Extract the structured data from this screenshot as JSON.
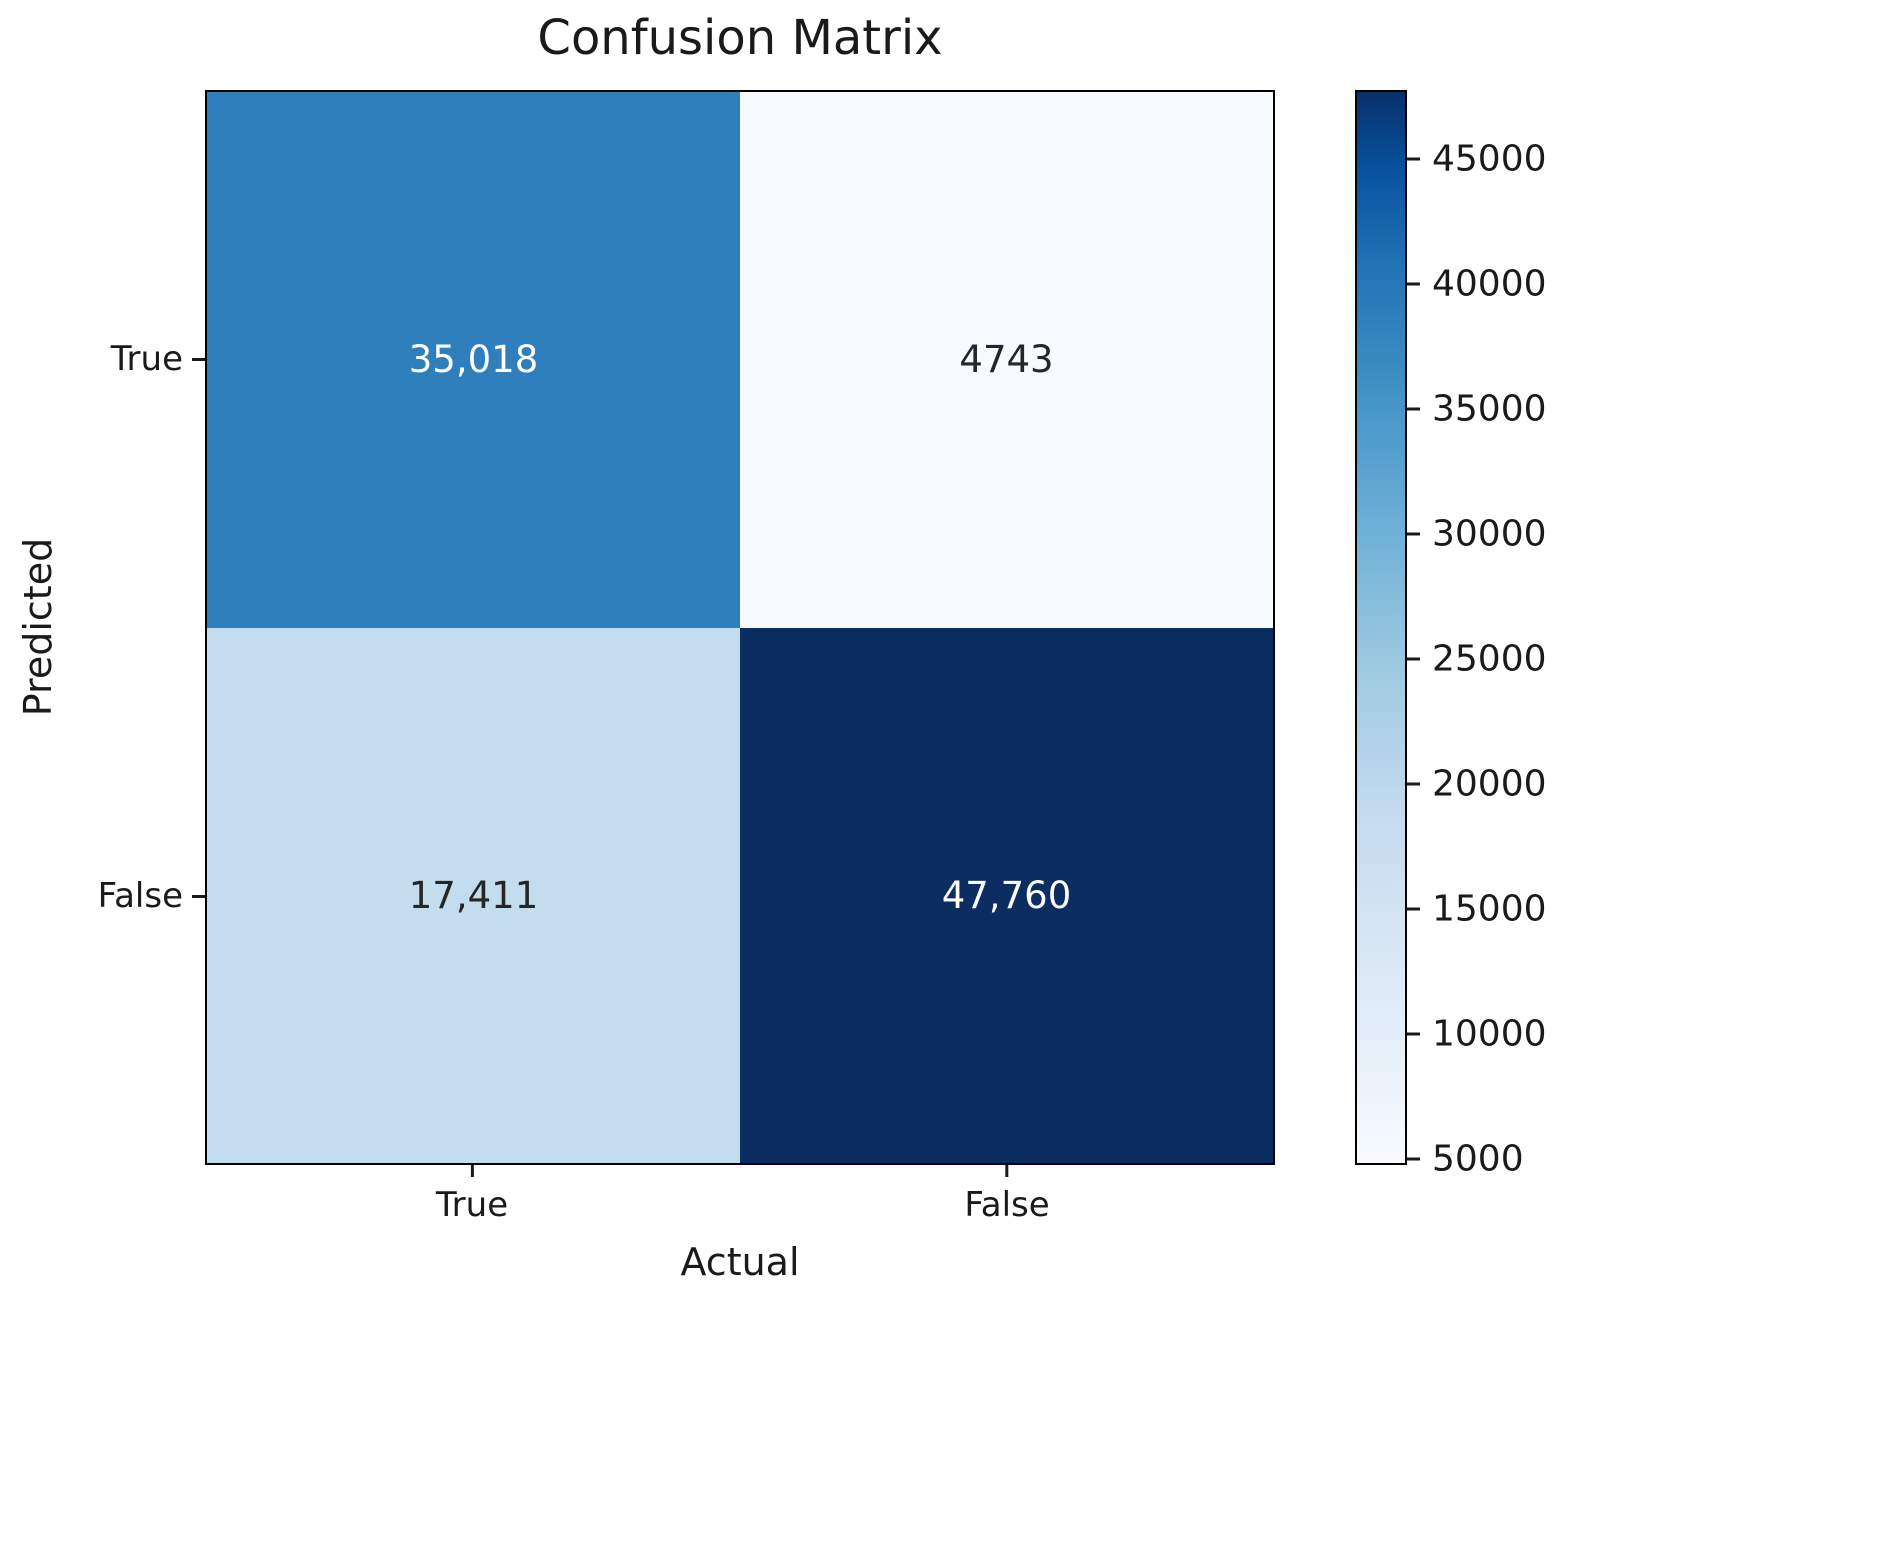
{
  "chart_data": {
    "type": "heatmap",
    "title": "Confusion Matrix",
    "xlabel": "Actual",
    "ylabel": "Predicted",
    "x_categories": [
      "True",
      "False"
    ],
    "y_categories": [
      "True",
      "False"
    ],
    "values": [
      [
        35018,
        4743
      ],
      [
        17411,
        47760
      ]
    ],
    "cell_labels": [
      [
        "35,018",
        "4743"
      ],
      [
        "17,411",
        "47,760"
      ]
    ],
    "cell_colors": [
      [
        "#2f7fbc",
        "#f6fafe"
      ],
      [
        "#c3dcee",
        "#0c2d62"
      ]
    ],
    "cell_text_colors": [
      [
        "#ffffff",
        "#262626"
      ],
      [
        "#262626",
        "#ffffff"
      ]
    ],
    "colormap": "Blues",
    "vmin": 4743,
    "vmax": 47760,
    "colorbar_ticks": [
      5000,
      10000,
      15000,
      20000,
      25000,
      30000,
      35000,
      40000,
      45000
    ],
    "colorbar_position": "right",
    "legend": "none",
    "grid": false
  }
}
